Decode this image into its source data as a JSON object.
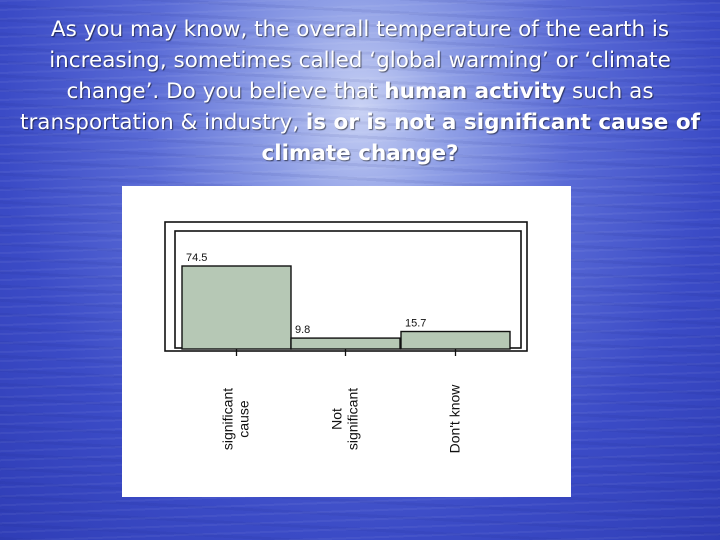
{
  "slide": {
    "question_parts": [
      {
        "text": "As you may know, the overall temperature of the earth is increasing, sometimes called ‘global warming’ or ‘climate change’. Do you believe that ",
        "bold": false
      },
      {
        "text": "human activity",
        "bold": true
      },
      {
        "text": " such as transportation & industry, ",
        "bold": false
      },
      {
        "text": "is or is not a significant cause of climate change?",
        "bold": true
      }
    ]
  },
  "chart_data": {
    "type": "bar",
    "categories": [
      [
        "significant",
        "cause"
      ],
      [
        "Not",
        "significant"
      ],
      [
        "Don't know"
      ]
    ],
    "values": [
      74.5,
      9.8,
      15.7
    ],
    "value_labels": [
      "74.5",
      "9.8",
      "15.7"
    ],
    "title": "",
    "xlabel": "",
    "ylabel": "",
    "ylim": [
      0,
      80
    ],
    "grid": false,
    "legend": "none",
    "bar_color": "#b6c8b5"
  }
}
